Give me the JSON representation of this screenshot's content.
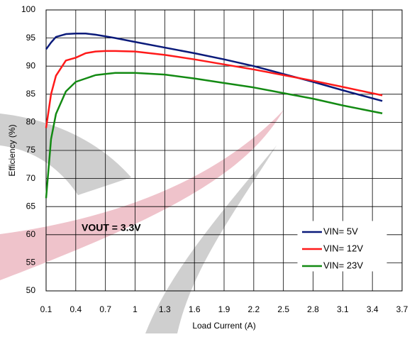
{
  "chart_data": {
    "type": "line",
    "xlabel": "Load Current (A)",
    "ylabel": "Efficiency (%)",
    "annotation": "VOUT = 3.3V",
    "x": [
      0.1,
      0.15,
      0.2,
      0.3,
      0.4,
      0.5,
      0.6,
      0.7,
      0.8,
      1.0,
      1.3,
      1.6,
      1.9,
      2.2,
      2.5,
      2.8,
      3.1,
      3.5
    ],
    "series": [
      {
        "name": "VIN= 5V",
        "color": "#0a1a7a",
        "values": [
          93,
          94.2,
          95.2,
          95.7,
          95.8,
          95.8,
          95.6,
          95.3,
          95.0,
          94.3,
          93.3,
          92.3,
          91.2,
          90.0,
          88.6,
          87.2,
          85.7,
          83.8
        ]
      },
      {
        "name": "VIN= 12V",
        "color": "#ff1a1a",
        "values": [
          79,
          85,
          88.3,
          91,
          91.5,
          92.3,
          92.6,
          92.7,
          92.7,
          92.6,
          92.0,
          91.2,
          90.3,
          89.4,
          88.4,
          87.4,
          86.3,
          84.8
        ]
      },
      {
        "name": "VIN= 23V",
        "color": "#138a13",
        "values": [
          66.5,
          77,
          81.5,
          85.5,
          87.2,
          87.8,
          88.4,
          88.6,
          88.8,
          88.8,
          88.5,
          87.8,
          87.0,
          86.2,
          85.2,
          84.2,
          83.0,
          81.6
        ]
      }
    ],
    "xlim": [
      0.1,
      3.7
    ],
    "xticks": [
      0.1,
      0.4,
      0.7,
      1,
      1.3,
      1.6,
      1.9,
      2.2,
      2.5,
      2.8,
      3.1,
      3.4,
      3.7
    ],
    "ylim": [
      50,
      100
    ],
    "yticks": [
      50,
      55,
      60,
      65,
      70,
      75,
      80,
      85,
      90,
      95,
      100
    ],
    "grid": true,
    "legend": "lower right"
  }
}
